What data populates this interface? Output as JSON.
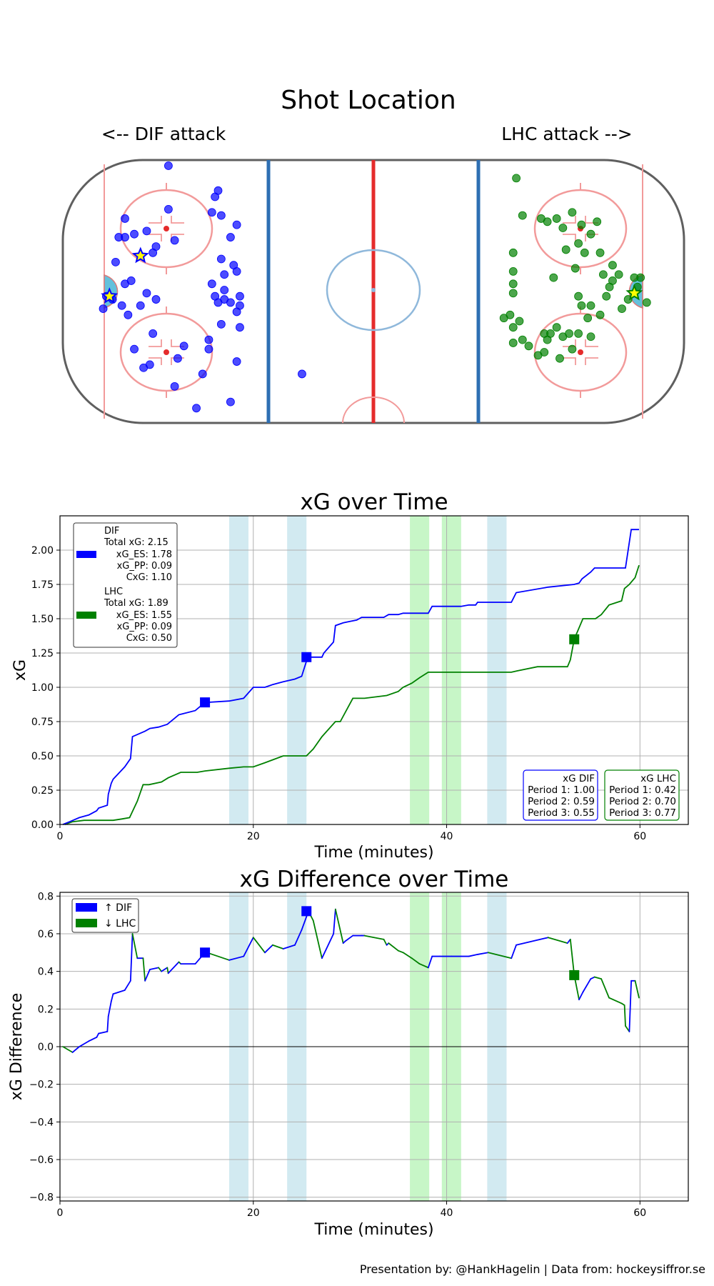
{
  "rink": {
    "title": "Shot Location",
    "left_label": "<-- DIF attack",
    "right_label": "LHC attack -->",
    "dif_color": "#0000ff",
    "lhc_color": "#008000",
    "dif_shots": [
      [
        -87,
        -6
      ],
      [
        -84,
        -3
      ],
      [
        -81,
        -5
      ],
      [
        -79,
        -8
      ],
      [
        -86,
        -2
      ],
      [
        -80,
        2
      ],
      [
        -78,
        3
      ],
      [
        -75,
        -5
      ],
      [
        -73,
        -1
      ],
      [
        -83,
        9
      ],
      [
        -80,
        17
      ],
      [
        -77,
        18
      ],
      [
        -73,
        19
      ],
      [
        -80,
        23
      ],
      [
        -71,
        12
      ],
      [
        -70,
        14
      ],
      [
        -66,
        26
      ],
      [
        -64,
        16
      ],
      [
        -66,
        40
      ],
      [
        -82,
        17
      ],
      [
        -63,
        -22
      ],
      [
        -61,
        -18
      ],
      [
        -53,
        -16
      ],
      [
        -57,
        -38
      ],
      [
        -55,
        -27
      ],
      [
        -52,
        25
      ],
      [
        -49,
        24
      ],
      [
        -51,
        30
      ],
      [
        -50,
        32
      ],
      [
        -49,
        10
      ],
      [
        -46,
        17
      ],
      [
        -44,
        21
      ],
      [
        -52,
        2
      ],
      [
        -48,
        5
      ],
      [
        -45,
        8
      ],
      [
        -44,
        6
      ],
      [
        -48,
        -3
      ],
      [
        -44,
        -7
      ],
      [
        -43,
        -5
      ],
      [
        -50,
        -4
      ],
      [
        -53,
        -19
      ],
      [
        -49,
        -11
      ],
      [
        -43,
        -12
      ],
      [
        -51,
        -2
      ],
      [
        -46,
        -4
      ],
      [
        -48,
        0
      ],
      [
        -43,
        -2
      ],
      [
        -44,
        -23
      ],
      [
        -46,
        -36
      ],
      [
        -74,
        -25
      ],
      [
        -77,
        -19
      ],
      [
        -64,
        -31
      ],
      [
        -71,
        -14
      ],
      [
        -70,
        -3
      ],
      [
        -72,
        -24
      ],
      [
        -23,
        -27
      ]
    ],
    "dif_goals": [
      [
        -75,
        11
      ],
      [
        -85,
        -2
      ]
    ],
    "lhc_shots": [
      [
        46,
        36
      ],
      [
        48,
        24
      ],
      [
        54,
        23
      ],
      [
        56,
        22
      ],
      [
        59,
        23
      ],
      [
        64,
        25
      ],
      [
        67,
        21
      ],
      [
        61,
        20
      ],
      [
        66,
        15
      ],
      [
        70,
        18
      ],
      [
        62,
        13
      ],
      [
        68,
        12
      ],
      [
        72,
        22
      ],
      [
        77,
        8
      ],
      [
        74,
        5
      ],
      [
        65,
        7
      ],
      [
        45,
        12
      ],
      [
        45,
        6
      ],
      [
        45,
        2
      ],
      [
        45,
        -1
      ],
      [
        58,
        4
      ],
      [
        66,
        -2
      ],
      [
        75,
        -2
      ],
      [
        69,
        -9
      ],
      [
        66,
        -14
      ],
      [
        61,
        -15
      ],
      [
        70,
        -15
      ],
      [
        59,
        -12
      ],
      [
        57,
        -14
      ],
      [
        63,
        -14
      ],
      [
        64,
        -19
      ],
      [
        55,
        -14
      ],
      [
        50,
        -18
      ],
      [
        48,
        -16
      ],
      [
        45,
        -17
      ],
      [
        45,
        -12
      ],
      [
        42,
        -9
      ],
      [
        44,
        -8
      ],
      [
        47,
        -10
      ],
      [
        55,
        -20
      ],
      [
        60,
        -22
      ],
      [
        53,
        -21
      ],
      [
        56,
        -16
      ],
      [
        73,
        -8
      ],
      [
        80,
        -6
      ],
      [
        82,
        -3
      ],
      [
        85,
        1
      ],
      [
        84,
        4
      ],
      [
        86,
        4
      ],
      [
        88,
        -4
      ],
      [
        79,
        5
      ],
      [
        70,
        -5
      ],
      [
        76,
        1
      ],
      [
        77,
        3
      ],
      [
        73,
        12
      ],
      [
        67,
        -5
      ]
    ],
    "lhc_goals": [
      [
        84,
        -1
      ]
    ]
  },
  "xg_chart": {
    "title": "xG over Time",
    "xlabel": "Time (minutes)",
    "ylabel": "xG",
    "x_ticks": [
      "0",
      "20",
      "40",
      "60"
    ],
    "y_ticks": [
      "0.00",
      "0.25",
      "0.50",
      "0.75",
      "1.00",
      "1.25",
      "1.50",
      "1.75",
      "2.00"
    ],
    "legend": {
      "dif": [
        "DIF",
        "Total xG: 2.15",
        "xG_ES: 1.78",
        "xG_PP: 0.09",
        "CxG: 1.10"
      ],
      "lhc": [
        "LHC",
        "Total xG: 1.89",
        "xG_ES: 1.55",
        "xG_PP: 0.09",
        "CxG: 0.50"
      ]
    },
    "period_box_dif": [
      "xG DIF",
      "Period 1: 1.00",
      "Period 2: 0.59",
      "Period 3: 0.55"
    ],
    "period_box_lhc": [
      "xG LHC",
      "Period 1: 0.42",
      "Period 2: 0.70",
      "Period 3: 0.77"
    ]
  },
  "diff_chart": {
    "title": "xG Difference over Time",
    "xlabel": "Time (minutes)",
    "ylabel": "xG Difference",
    "x_ticks": [
      "0",
      "20",
      "40",
      "60"
    ],
    "y_ticks": [
      "−0.8",
      "−0.6",
      "−0.4",
      "−0.2",
      "0.0",
      "0.2",
      "0.4",
      "0.6",
      "0.8"
    ],
    "legend": [
      "↑ DIF",
      "↓ LHC"
    ]
  },
  "chart_data": [
    {
      "type": "line",
      "title": "xG over Time",
      "xlabel": "Time (minutes)",
      "ylabel": "xG",
      "xlim": [
        0,
        65
      ],
      "ylim": [
        0,
        2.25
      ],
      "powerplay_shading": {
        "DIF": [
          [
            17.5,
            19.5
          ],
          [
            23.5,
            25.5
          ],
          [
            44.2,
            46.2
          ]
        ],
        "LHC": [
          [
            36.2,
            38.2
          ],
          [
            39.5,
            41.5
          ]
        ]
      },
      "series": [
        {
          "name": "DIF",
          "x": [
            0.3,
            1,
            2,
            3,
            3.8,
            4,
            4.9,
            5,
            5.3,
            5.5,
            6.7,
            7.3,
            7.5,
            8.8,
            9.3,
            10.2,
            11.1,
            12.3,
            14,
            15,
            15.2,
            17.5,
            19,
            20,
            21.2,
            22,
            23.1,
            24.3,
            25,
            25.5,
            25.7,
            27.1,
            27.3,
            28.3,
            28.5,
            29.3,
            30,
            30.7,
            31.2,
            33.5,
            34,
            35,
            35.5,
            38.1,
            38.5,
            41.5,
            42.3,
            43,
            43.2,
            44.3,
            46.7,
            47.2,
            50.5,
            53.2,
            53.7,
            54,
            54.9,
            55.3,
            58.5,
            59.1,
            59.9
          ],
          "y": [
            0,
            0.02,
            0.05,
            0.07,
            0.1,
            0.12,
            0.14,
            0.22,
            0.3,
            0.33,
            0.42,
            0.48,
            0.64,
            0.68,
            0.7,
            0.71,
            0.73,
            0.8,
            0.83,
            0.89,
            0.89,
            0.9,
            0.92,
            1,
            1,
            1.02,
            1.04,
            1.06,
            1.08,
            1.19,
            1.22,
            1.22,
            1.25,
            1.33,
            1.45,
            1.47,
            1.48,
            1.49,
            1.51,
            1.51,
            1.53,
            1.53,
            1.54,
            1.54,
            1.59,
            1.59,
            1.6,
            1.6,
            1.62,
            1.62,
            1.62,
            1.69,
            1.73,
            1.75,
            1.76,
            1.79,
            1.84,
            1.87,
            1.87,
            2.15,
            2.15
          ]
        },
        {
          "name": "LHC",
          "x": [
            0.5,
            1.3,
            2.5,
            4.5,
            5.5,
            6.4,
            7.2,
            8,
            8.6,
            9.2,
            10.5,
            11.2,
            12.5,
            13.5,
            14.2,
            15,
            17.5,
            19,
            20,
            21.2,
            23.1,
            24.3,
            25.5,
            26.2,
            27.1,
            28.5,
            29,
            30.3,
            31.5,
            33.8,
            35,
            35.5,
            36.4,
            37.2,
            38.1,
            39.3,
            40.5,
            42.7,
            46.7,
            47.3,
            49.4,
            50.9,
            52.5,
            52.8,
            53.2,
            54.1,
            55.4,
            56,
            56.8,
            58.1,
            58.4,
            58.9,
            59.5,
            59.9
          ],
          "y": [
            0,
            0.02,
            0.03,
            0.03,
            0.03,
            0.04,
            0.05,
            0.17,
            0.29,
            0.29,
            0.31,
            0.34,
            0.38,
            0.38,
            0.38,
            0.39,
            0.41,
            0.42,
            0.42,
            0.45,
            0.5,
            0.5,
            0.5,
            0.55,
            0.64,
            0.75,
            0.75,
            0.92,
            0.92,
            0.94,
            0.97,
            1,
            1.03,
            1.07,
            1.11,
            1.11,
            1.11,
            1.11,
            1.11,
            1.12,
            1.15,
            1.15,
            1.15,
            1.2,
            1.35,
            1.5,
            1.5,
            1.53,
            1.6,
            1.63,
            1.72,
            1.75,
            1.8,
            1.89
          ]
        }
      ],
      "markers": {
        "DIF": [
          [
            15,
            0.89
          ],
          [
            25.5,
            1.22
          ]
        ],
        "LHC": [
          [
            53.2,
            1.35
          ]
        ]
      }
    },
    {
      "type": "line",
      "title": "xG Difference over Time",
      "xlabel": "Time (minutes)",
      "ylabel": "xG Difference",
      "xlim": [
        0,
        65
      ],
      "ylim": [
        -0.82,
        0.82
      ],
      "series": [
        {
          "name": "Difference",
          "x": [
            0.3,
            1.3,
            2,
            3,
            3.8,
            4,
            4.9,
            5,
            5.3,
            5.5,
            6.7,
            7.3,
            7.5,
            8,
            8.6,
            8.8,
            9.3,
            10.2,
            10.5,
            11.1,
            11.2,
            12.3,
            12.5,
            14,
            15,
            15.2,
            17.5,
            19,
            20,
            21.2,
            22,
            23.1,
            24.3,
            25,
            25.5,
            25.7,
            26.2,
            27.1,
            28.3,
            28.5,
            29.3,
            29.5,
            30.3,
            31.2,
            31.5,
            33.5,
            33.8,
            34,
            35,
            35.5,
            36.4,
            37.2,
            38.1,
            38.5,
            39.3,
            40.5,
            41.5,
            42.3,
            43.2,
            44.3,
            46.7,
            47.2,
            50.5,
            52.5,
            52.8,
            53.2,
            53.7,
            54.1,
            54.9,
            55.3,
            56,
            56.8,
            58.1,
            58.4,
            58.5,
            58.9,
            59.1,
            59.5,
            59.9
          ],
          "y": [
            0,
            -0.03,
            0,
            0.03,
            0.05,
            0.07,
            0.08,
            0.16,
            0.24,
            0.28,
            0.3,
            0.35,
            0.6,
            0.47,
            0.47,
            0.35,
            0.41,
            0.42,
            0.4,
            0.42,
            0.39,
            0.45,
            0.44,
            0.44,
            0.5,
            0.5,
            0.46,
            0.48,
            0.58,
            0.5,
            0.54,
            0.52,
            0.54,
            0.62,
            0.69,
            0.72,
            0.67,
            0.47,
            0.6,
            0.73,
            0.55,
            0.56,
            0.59,
            0.59,
            0.59,
            0.57,
            0.54,
            0.55,
            0.51,
            0.5,
            0.47,
            0.44,
            0.42,
            0.48,
            0.48,
            0.48,
            0.48,
            0.48,
            0.49,
            0.5,
            0.47,
            0.54,
            0.58,
            0.55,
            0.57,
            0.38,
            0.25,
            0.29,
            0.36,
            0.37,
            0.36,
            0.26,
            0.23,
            0.22,
            0.11,
            0.08,
            0.35,
            0.35,
            0.26
          ]
        }
      ],
      "markers": {
        "DIF": [
          [
            15,
            0.5
          ],
          [
            25.5,
            0.72
          ]
        ],
        "LHC": [
          [
            53.2,
            0.38
          ]
        ]
      }
    }
  ],
  "footer": {
    "credit": "Presentation by: @HankHagelin | Data from: hockeysiffror.se"
  }
}
